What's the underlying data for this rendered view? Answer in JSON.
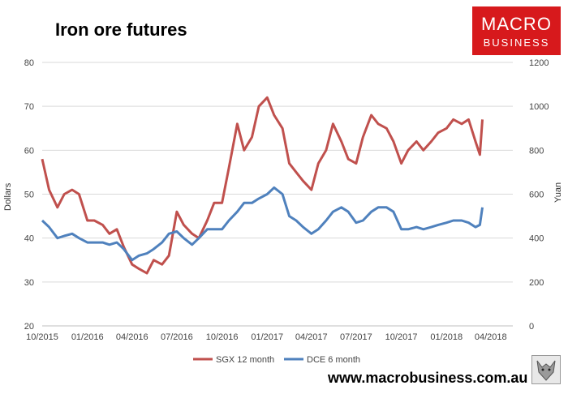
{
  "title": "Iron ore futures",
  "logo": {
    "line1": "MACRO",
    "line2": "BUSINESS",
    "bg_color": "#d7191c"
  },
  "website": "www.macrobusiness.com.au",
  "colors": {
    "sgx": "#c0504d",
    "dce": "#4f81bd",
    "grid": "#d9d9d9"
  },
  "chart_data": {
    "type": "line",
    "ylabel": "Dollars",
    "y2label": "Yuan",
    "ylim": [
      20,
      80
    ],
    "y2lim": [
      0,
      1200
    ],
    "yticks": [
      20,
      30,
      40,
      50,
      60,
      70,
      80
    ],
    "y2ticks": [
      0,
      200,
      400,
      600,
      800,
      1000,
      1200
    ],
    "xlim": [
      "2015-10-01",
      "2018-05-16"
    ],
    "xticks": [
      "10/2015",
      "01/2016",
      "04/2016",
      "07/2016",
      "10/2016",
      "01/2017",
      "04/2017",
      "07/2017",
      "10/2017",
      "01/2018",
      "04/2018"
    ],
    "grid": true,
    "legend_position": "bottom",
    "series": [
      {
        "name": "SGX 12 month",
        "axis": "left",
        "x": [
          "2015-10-01",
          "2015-10-15",
          "2015-11-01",
          "2015-11-15",
          "2015-12-01",
          "2015-12-15",
          "2016-01-01",
          "2016-01-15",
          "2016-02-01",
          "2016-02-15",
          "2016-03-01",
          "2016-03-15",
          "2016-04-01",
          "2016-04-15",
          "2016-05-01",
          "2016-05-15",
          "2016-06-01",
          "2016-06-15",
          "2016-07-01",
          "2016-07-15",
          "2016-08-01",
          "2016-08-15",
          "2016-09-01",
          "2016-09-15",
          "2016-10-01",
          "2016-10-15",
          "2016-11-01",
          "2016-11-15",
          "2016-12-01",
          "2016-12-15",
          "2017-01-01",
          "2017-01-15",
          "2017-02-01",
          "2017-02-15",
          "2017-03-01",
          "2017-03-15",
          "2017-04-01",
          "2017-04-15",
          "2017-05-01",
          "2017-05-15",
          "2017-06-01",
          "2017-06-15",
          "2017-07-01",
          "2017-07-15",
          "2017-08-01",
          "2017-08-15",
          "2017-09-01",
          "2017-09-15",
          "2017-10-01",
          "2017-10-15",
          "2017-11-01",
          "2017-11-15",
          "2017-12-01",
          "2017-12-15",
          "2018-01-01",
          "2018-01-15",
          "2018-02-01",
          "2018-02-15",
          "2018-03-01",
          "2018-03-10",
          "2018-03-15"
        ],
        "y": [
          58,
          51,
          47,
          50,
          51,
          50,
          44,
          44,
          43,
          41,
          42,
          38,
          34,
          33,
          32,
          35,
          34,
          36,
          46,
          43,
          41,
          40,
          44,
          48,
          48,
          56,
          66,
          60,
          63,
          70,
          72,
          68,
          65,
          57,
          55,
          53,
          51,
          57,
          60,
          66,
          62,
          58,
          57,
          63,
          68,
          66,
          65,
          62,
          57,
          60,
          62,
          60,
          62,
          64,
          65,
          67,
          66,
          67,
          62,
          59,
          67
        ]
      },
      {
        "name": "DCE 6 month",
        "axis": "right",
        "x": [
          "2015-10-01",
          "2015-10-15",
          "2015-11-01",
          "2015-11-15",
          "2015-12-01",
          "2015-12-15",
          "2016-01-01",
          "2016-01-15",
          "2016-02-01",
          "2016-02-15",
          "2016-03-01",
          "2016-03-15",
          "2016-04-01",
          "2016-04-15",
          "2016-05-01",
          "2016-05-15",
          "2016-06-01",
          "2016-06-15",
          "2016-07-01",
          "2016-07-15",
          "2016-08-01",
          "2016-08-15",
          "2016-09-01",
          "2016-09-15",
          "2016-10-01",
          "2016-10-15",
          "2016-11-01",
          "2016-11-15",
          "2016-12-01",
          "2016-12-15",
          "2017-01-01",
          "2017-01-15",
          "2017-02-01",
          "2017-02-15",
          "2017-03-01",
          "2017-03-15",
          "2017-04-01",
          "2017-04-15",
          "2017-05-01",
          "2017-05-15",
          "2017-06-01",
          "2017-06-15",
          "2017-07-01",
          "2017-07-15",
          "2017-08-01",
          "2017-08-15",
          "2017-09-01",
          "2017-09-15",
          "2017-10-01",
          "2017-10-15",
          "2017-11-01",
          "2017-11-15",
          "2017-12-01",
          "2017-12-15",
          "2018-01-01",
          "2018-01-15",
          "2018-02-01",
          "2018-02-15",
          "2018-03-01",
          "2018-03-10",
          "2018-03-15"
        ],
        "y": [
          480,
          450,
          400,
          410,
          420,
          400,
          380,
          380,
          380,
          370,
          380,
          350,
          300,
          320,
          330,
          350,
          380,
          420,
          430,
          400,
          370,
          400,
          440,
          440,
          440,
          480,
          520,
          560,
          560,
          580,
          600,
          630,
          600,
          500,
          480,
          450,
          420,
          440,
          480,
          520,
          540,
          520,
          470,
          480,
          520,
          540,
          540,
          520,
          440,
          440,
          450,
          440,
          450,
          460,
          470,
          480,
          480,
          470,
          450,
          460,
          540
        ]
      }
    ]
  }
}
